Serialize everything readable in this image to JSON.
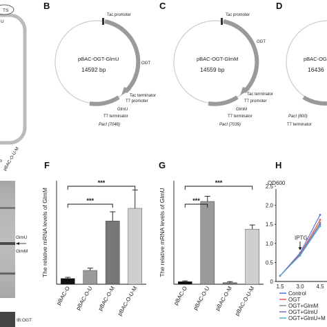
{
  "panels": {
    "A_fragment": "TS",
    "B": "B",
    "C": "C",
    "D": "D",
    "F": "F",
    "G": "G",
    "H": "H"
  },
  "plasmids": [
    {
      "name": "pBAC-OGT-GlmU",
      "size": "14592 bp",
      "labels": {
        "tac_promoter": "Tac promoter",
        "ogt": "OGT",
        "tac_terminator": "Tac terminator",
        "t7_promoter": "T7 promoter",
        "gene": "GlmU",
        "t7_terminator": "T7 terminator",
        "site": "PacI (7048)"
      }
    },
    {
      "name": "pBAC-OGT-GlmM",
      "size": "14559 bp",
      "labels": {
        "tac_promoter": "Tac promoter",
        "ogt": "OGT",
        "tac_terminator": "Tac terminator",
        "t7_promoter": "T7 promoter",
        "gene": "GlmM",
        "t7_terminator": "T7 terminator",
        "site": "PacI (7039)"
      }
    },
    {
      "name": "pBAC-OGT-",
      "size": "16436",
      "labels": {
        "site": "PacI (800)",
        "t7_terminator": "T7 terminator"
      }
    }
  ],
  "blot": {
    "lane_label": "pBAC-O-U-M",
    "lane_left": "o",
    "band_glmu": "GlmU",
    "band_glmm": "GlmM",
    "ib": "IB:OGT"
  },
  "chart_data": [
    {
      "panel": "F",
      "type": "bar",
      "ylabel": "The relative mRNA levels of GlmM",
      "categories": [
        "pBAC-O",
        "pBAC-O-U",
        "pBAC-O-M",
        "pBAC-O-U-M"
      ],
      "values": [
        1.0,
        2.4,
        11.0,
        13.2
      ],
      "errors": [
        0.2,
        0.4,
        1.6,
        3.2
      ],
      "colors": [
        "#111111",
        "#9a9a9a",
        "#777777",
        "#cfcfcf"
      ],
      "ylim": [
        0,
        18
      ],
      "significance": [
        {
          "from": 0,
          "to": 2,
          "label": "***"
        },
        {
          "from": 0,
          "to": 3,
          "label": "***"
        }
      ]
    },
    {
      "panel": "G",
      "type": "bar",
      "ylabel": "The relative mRNA levels of GlmU",
      "categories": [
        "pBAC-O",
        "pBAC-O-U",
        "pBAC-O-M",
        "pBAC-O-U-M"
      ],
      "values": [
        1.0,
        32.0,
        0.6,
        21.3
      ],
      "errors": [
        0.3,
        2.0,
        0.4,
        1.6
      ],
      "colors": [
        "#111111",
        "#9a9a9a",
        "#777777",
        "#cfcfcf"
      ],
      "ylim": [
        0,
        40
      ],
      "significance": [
        {
          "from": 0,
          "to": 1,
          "label": "***"
        },
        {
          "from": 0,
          "to": 3,
          "label": "***"
        }
      ]
    },
    {
      "panel": "H",
      "type": "line",
      "ylabel": "OD600",
      "ytick_labels": [
        "0",
        "0.5",
        "1.0",
        "1.5",
        "2.0",
        "2.5"
      ],
      "xtick_labels": [
        "1.5",
        "3.0",
        "4.5"
      ],
      "ylim": [
        0,
        2.5
      ],
      "x": [
        1.5,
        3.0,
        4.5
      ],
      "annotation": "IPTG",
      "annotation_x": 3.0,
      "series": [
        {
          "name": "Control",
          "color": "#4a6fd8",
          "values": [
            0.15,
            0.75,
            1.75
          ]
        },
        {
          "name": "OGT",
          "color": "#e05a4f",
          "values": [
            0.15,
            0.72,
            1.62
          ]
        },
        {
          "name": "OGT+GlmM",
          "color": "#8a8a8a",
          "values": [
            0.15,
            0.7,
            1.55
          ]
        },
        {
          "name": "OGT+GlmU",
          "color": "#7f6bc4",
          "values": [
            0.15,
            0.7,
            1.5
          ]
        },
        {
          "name": "OGT+GlmU+M",
          "color": "#4fb0c6",
          "values": [
            0.15,
            0.68,
            1.45
          ]
        }
      ],
      "legend_labels": [
        "Control",
        "OGT",
        "OGT+GlmM",
        "OGT+GlmU",
        "OGT+GlmU+M"
      ]
    }
  ]
}
